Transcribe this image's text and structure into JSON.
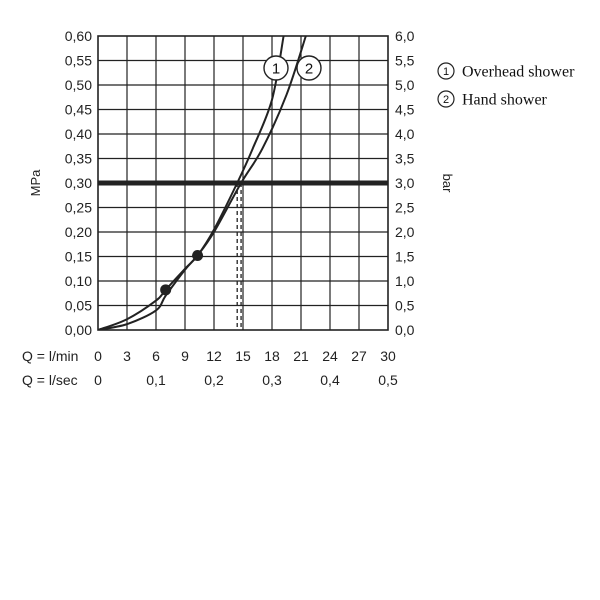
{
  "chart_data": {
    "type": "line",
    "xlabel_primary": "Q = l/min",
    "xlabel_secondary": "Q = l/sec",
    "ylabel_left": "MPa",
    "ylabel_right": "bar",
    "xlim": [
      0,
      30
    ],
    "ylim_left": [
      0,
      0.6
    ],
    "ylim_right": [
      0,
      6
    ],
    "grid": true,
    "x_ticks": [
      "0",
      "3",
      "6",
      "9",
      "12",
      "15",
      "18",
      "21",
      "24",
      "27",
      "30"
    ],
    "x_sec_ticks": [
      "0",
      "0,1",
      "0,2",
      "0,3",
      "0,4",
      "0,5"
    ],
    "y_left_ticks": [
      "0,00",
      "0,05",
      "0,10",
      "0,15",
      "0,20",
      "0,25",
      "0,30",
      "0,35",
      "0,40",
      "0,45",
      "0,50",
      "0,55",
      "0,60"
    ],
    "y_right_ticks": [
      "0,0",
      "0,5",
      "1,0",
      "1,5",
      "2,0",
      "2,5",
      "3,0",
      "3,5",
      "4,0",
      "4,5",
      "5,0",
      "5,5",
      "6,0"
    ],
    "reference_line": {
      "y": 0.3
    },
    "series": [
      {
        "marker": "1",
        "x": [
          0,
          3,
          6,
          7,
          9,
          10.3,
          12,
          14.4,
          16,
          18,
          19.2
        ],
        "y": [
          0,
          0.022,
          0.06,
          0.082,
          0.125,
          0.152,
          0.205,
          0.3,
          0.37,
          0.47,
          0.6
        ]
      },
      {
        "marker": "2",
        "x": [
          0,
          3,
          6,
          7,
          9,
          10.3,
          12,
          14.8,
          17,
          19.5,
          21.5
        ],
        "y": [
          0,
          0.012,
          0.04,
          0.07,
          0.123,
          0.152,
          0.2,
          0.3,
          0.37,
          0.48,
          0.6
        ]
      }
    ],
    "points": [
      {
        "x": 7,
        "y": 0.082
      },
      {
        "x": 10.3,
        "y": 0.152
      }
    ],
    "dropdown_lines": [
      14.4,
      14.8
    ],
    "legend": {
      "placement": "top-right",
      "items": [
        {
          "marker": "1",
          "label": "Overhead shower"
        },
        {
          "marker": "2",
          "label": "Hand shower"
        }
      ]
    }
  }
}
